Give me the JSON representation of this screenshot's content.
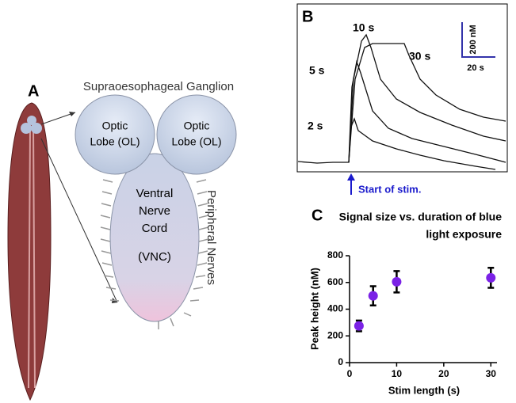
{
  "panel_a": {
    "letter": "A",
    "title": "Supraoesophageal Ganglion",
    "left_lobe": [
      "Optic",
      "Lobe (OL)"
    ],
    "right_lobe": [
      "Optic",
      "Lobe (OL)"
    ],
    "cord": [
      "Ventral",
      "Nerve",
      "Cord",
      "(VNC)"
    ],
    "nerves": "Peripheral Nerves"
  },
  "panel_b": {
    "letter": "B",
    "labels": [
      "10 s",
      "30 s",
      "5 s",
      "2 s"
    ],
    "scale_y": "200 nM",
    "scale_x": "20 s",
    "stim": "Start of stim."
  },
  "chart_data": {
    "type": "scatter",
    "letter": "C",
    "title": [
      "Signal size vs. duration of blue",
      "light exposure"
    ],
    "xlabel": "Stim length (s)",
    "ylabel": "Peak height (nM)",
    "x": [
      2,
      5,
      10,
      30
    ],
    "series": [
      {
        "color": "#7b22e6",
        "values": [
          275,
          500,
          605,
          635
        ],
        "errors": [
          40,
          72,
          80,
          75
        ]
      }
    ],
    "xlim": [
      0,
      31.3
    ],
    "xticks": [
      0,
      10,
      20,
      30
    ],
    "ylim": [
      0,
      800
    ],
    "yticks": [
      0,
      200,
      400,
      600,
      800
    ]
  }
}
